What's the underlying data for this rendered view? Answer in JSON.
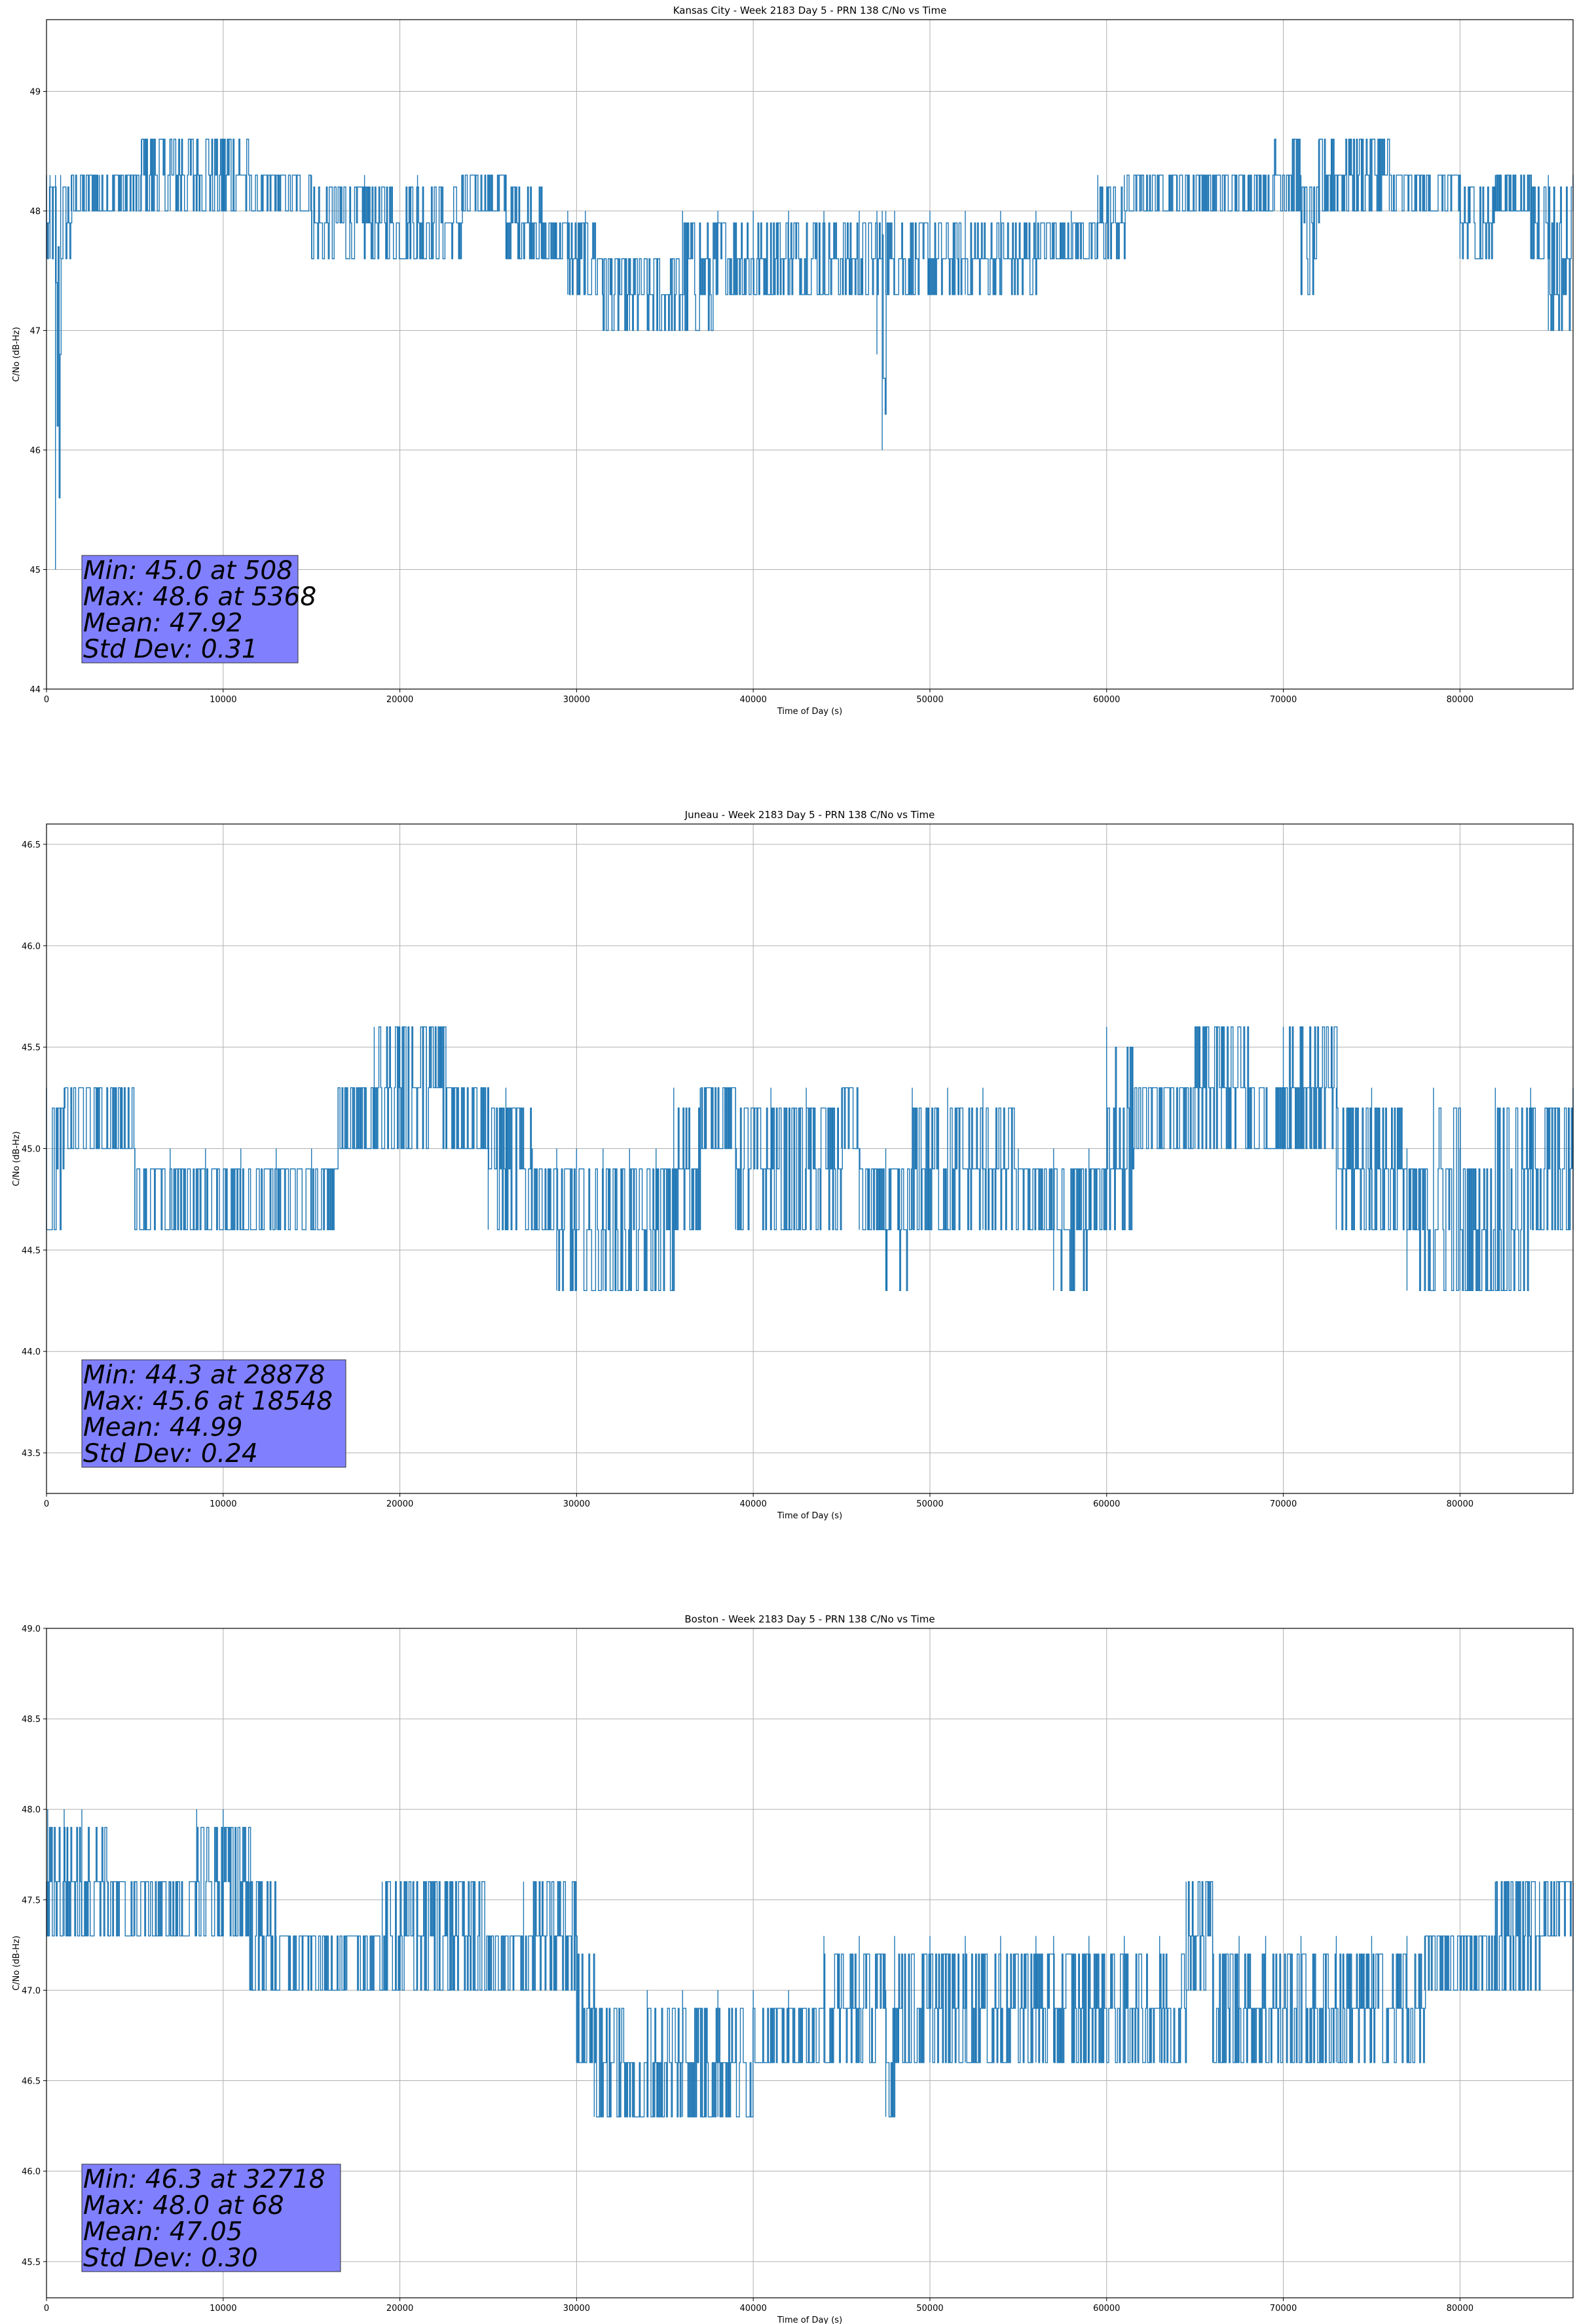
{
  "chart_data": [
    {
      "type": "line",
      "title": "Kansas City - Week 2183 Day 5 - PRN 138 C/No vs Time",
      "xlabel": "Time of Day (s)",
      "ylabel": "C/No (dB-Hz)",
      "xlim": [
        0,
        86400
      ],
      "ylim": [
        44,
        49.6
      ],
      "xticks": [
        0,
        10000,
        20000,
        30000,
        40000,
        50000,
        60000,
        70000,
        80000
      ],
      "yticks": [
        44,
        45,
        46,
        47,
        48,
        49
      ],
      "ytick_labels": [
        "44",
        "45",
        "46",
        "47",
        "48",
        "49"
      ],
      "grid": true,
      "color": "#1f77b4",
      "series": [
        {
          "x": [
            0,
            200,
            508,
            800,
            1400,
            3000,
            5368,
            7000,
            8500,
            10000,
            11500,
            13000,
            15000,
            18000,
            21000,
            23500,
            26000,
            28000,
            29500,
            30500,
            31500,
            32000,
            33000,
            34000,
            36000,
            38000,
            40000,
            42000,
            44000,
            46000,
            47000,
            47300,
            47500,
            48000,
            50000,
            52000,
            54000,
            56000,
            58000,
            59500,
            61000,
            62000,
            64000,
            66000,
            68000,
            69500,
            71000,
            72000,
            74000,
            76000,
            78000,
            80000,
            82000,
            84000,
            85000,
            86400
          ],
          "y": [
            48.3,
            47.6,
            45.0,
            48.3,
            48.0,
            48.3,
            48.6,
            48.3,
            48.6,
            48.3,
            48.0,
            48.3,
            48.0,
            47.6,
            48.3,
            48.0,
            47.6,
            48.0,
            47.6,
            47.3,
            47.6,
            47.0,
            47.6,
            47.0,
            47.6,
            47.3,
            47.6,
            47.3,
            47.6,
            47.3,
            46.8,
            46.0,
            47.6,
            48.0,
            47.6,
            48.0,
            47.6,
            48.0,
            47.6,
            48.0,
            48.3,
            48.0,
            48.3,
            48.0,
            48.3,
            48.6,
            48.0,
            48.3,
            48.6,
            48.3,
            48.0,
            48.3,
            48.0,
            47.6,
            47.0,
            48.3
          ],
          "band_min": [
            47.6,
            47.6,
            45.0,
            47.6,
            48.0,
            48.0,
            48.0,
            48.0,
            48.0,
            48.0,
            48.0,
            48.0,
            47.6,
            47.6,
            47.6,
            48.0,
            47.6,
            47.6,
            47.3,
            47.3,
            47.0,
            47.0,
            47.0,
            47.0,
            47.0,
            47.3,
            47.3,
            47.3,
            47.3,
            47.3,
            47.3,
            46.0,
            47.3,
            47.3,
            47.3,
            47.3,
            47.3,
            47.6,
            47.6,
            47.6,
            48.0,
            48.0,
            48.0,
            48.0,
            48.0,
            48.0,
            47.3,
            48.0,
            48.0,
            48.0,
            48.0,
            47.6,
            48.0,
            47.6,
            47.0,
            48.0
          ],
          "band_max": [
            48.3,
            48.3,
            48.3,
            48.3,
            48.3,
            48.3,
            48.6,
            48.6,
            48.6,
            48.6,
            48.3,
            48.3,
            48.3,
            48.3,
            48.3,
            48.3,
            48.3,
            48.0,
            48.0,
            48.0,
            47.6,
            47.6,
            47.6,
            47.6,
            48.0,
            48.0,
            48.0,
            48.0,
            48.0,
            48.0,
            48.0,
            48.0,
            48.0,
            48.0,
            48.0,
            48.0,
            48.0,
            48.0,
            48.0,
            48.3,
            48.3,
            48.3,
            48.3,
            48.3,
            48.3,
            48.6,
            48.3,
            48.6,
            48.6,
            48.3,
            48.3,
            48.3,
            48.3,
            48.3,
            48.3,
            48.3
          ]
        }
      ],
      "stats": [
        "Min: 45.0 at 508",
        "Max: 48.6 at 5368",
        "Mean: 47.92",
        "Std Dev: 0.31"
      ]
    },
    {
      "type": "line",
      "title": "Juneau - Week 2183 Day 5 - PRN 138 C/No vs Time",
      "xlabel": "Time of Day (s)",
      "ylabel": "C/No (dB-Hz)",
      "xlim": [
        0,
        86400
      ],
      "ylim": [
        43.3,
        46.6
      ],
      "xticks": [
        0,
        10000,
        20000,
        30000,
        40000,
        50000,
        60000,
        70000,
        80000
      ],
      "yticks": [
        43.5,
        44.0,
        44.5,
        45.0,
        45.5,
        46.0,
        46.5
      ],
      "ytick_labels": [
        "43.5",
        "44.0",
        "44.5",
        "45.0",
        "45.5",
        "46.0",
        "46.5"
      ],
      "grid": true,
      "color": "#1f77b4",
      "series": [
        {
          "x": [
            0,
            1000,
            3000,
            5000,
            7000,
            9000,
            11000,
            13000,
            15000,
            16500,
            18548,
            20000,
            21500,
            23000,
            25000,
            26000,
            27500,
            28878,
            30000,
            31500,
            33000,
            34500,
            35500,
            37000,
            39000,
            41000,
            43000,
            45000,
            46000,
            47500,
            49000,
            51000,
            53000,
            55000,
            57000,
            59000,
            60000,
            61500,
            63000,
            65000,
            66500,
            68000,
            70000,
            71500,
            73000,
            75000,
            77000,
            78500,
            80000,
            82000,
            84000,
            86400
          ],
          "y": [
            45.3,
            45.0,
            45.3,
            44.6,
            45.0,
            44.6,
            45.0,
            44.6,
            45.0,
            45.3,
            45.6,
            45.3,
            45.6,
            45.3,
            45.0,
            45.3,
            44.6,
            44.3,
            44.6,
            44.3,
            44.6,
            44.3,
            45.0,
            45.3,
            44.6,
            45.3,
            45.0,
            45.3,
            44.6,
            44.3,
            45.0,
            45.3,
            44.6,
            45.0,
            44.3,
            44.6,
            45.6,
            45.0,
            45.3,
            45.6,
            45.3,
            45.0,
            45.6,
            45.3,
            45.0,
            44.6,
            44.3,
            44.6,
            45.0,
            44.3,
            44.6,
            45.3
          ],
          "band_min": [
            44.6,
            45.0,
            45.0,
            44.6,
            44.6,
            44.6,
            44.6,
            44.6,
            44.6,
            45.0,
            45.0,
            45.0,
            45.0,
            45.0,
            44.6,
            44.6,
            44.6,
            44.3,
            44.3,
            44.3,
            44.3,
            44.3,
            44.6,
            45.0,
            44.6,
            44.6,
            44.6,
            45.0,
            44.6,
            44.3,
            44.6,
            44.6,
            44.6,
            44.6,
            44.3,
            44.6,
            44.6,
            45.0,
            45.0,
            45.0,
            45.0,
            45.0,
            45.0,
            45.0,
            44.6,
            44.6,
            44.3,
            44.3,
            44.3,
            44.3,
            44.6,
            44.6
          ],
          "band_max": [
            45.3,
            45.3,
            45.3,
            45.0,
            45.0,
            45.0,
            45.0,
            45.0,
            45.0,
            45.3,
            45.6,
            45.6,
            45.6,
            45.3,
            45.3,
            45.3,
            45.0,
            45.0,
            45.0,
            45.0,
            45.0,
            45.0,
            45.3,
            45.3,
            45.3,
            45.3,
            45.3,
            45.3,
            45.0,
            45.0,
            45.3,
            45.3,
            45.3,
            45.0,
            45.0,
            45.0,
            45.6,
            45.3,
            45.3,
            45.6,
            45.6,
            45.3,
            45.6,
            45.6,
            45.3,
            45.3,
            45.0,
            45.3,
            45.0,
            45.3,
            45.3,
            45.3
          ]
        }
      ],
      "stats": [
        "Min: 44.3 at 28878",
        "Max: 45.6 at 18548",
        "Mean: 44.99",
        "Std Dev: 0.24"
      ]
    },
    {
      "type": "line",
      "title": "Boston - Week 2183 Day 5 - PRN 138 C/No vs Time",
      "xlabel": "Time of Day (s)",
      "ylabel": "C/No (dB-Hz)",
      "xlim": [
        0,
        86400
      ],
      "ylim": [
        45.3,
        49.0
      ],
      "xticks": [
        0,
        10000,
        20000,
        30000,
        40000,
        50000,
        60000,
        70000,
        80000
      ],
      "yticks": [
        45.5,
        46.0,
        46.5,
        47.0,
        47.5,
        48.0,
        48.5,
        49.0
      ],
      "ytick_labels": [
        "45.5",
        "46.0",
        "46.5",
        "47.0",
        "47.5",
        "48.0",
        "48.5",
        "49.0"
      ],
      "grid": true,
      "color": "#1f77b4",
      "series": [
        {
          "x": [
            0,
            68,
            1000,
            2000,
            3500,
            5000,
            7000,
            8500,
            10000,
            11500,
            13000,
            15000,
            17000,
            19000,
            21000,
            23000,
            25000,
            27000,
            28500,
            30000,
            31000,
            32718,
            34000,
            36000,
            38000,
            40000,
            42000,
            44000,
            46000,
            47500,
            48000,
            50000,
            52000,
            54000,
            56000,
            57000,
            59000,
            61000,
            63000,
            64500,
            66000,
            67500,
            69000,
            71000,
            73000,
            75000,
            77000,
            78000,
            80000,
            82000,
            83000,
            84500,
            86400
          ],
          "y": [
            47.3,
            48.0,
            47.6,
            48.0,
            47.3,
            47.6,
            47.3,
            48.0,
            47.6,
            47.3,
            47.0,
            47.3,
            47.0,
            47.6,
            47.0,
            47.3,
            47.0,
            47.3,
            47.6,
            47.0,
            46.6,
            46.3,
            47.0,
            46.6,
            46.3,
            47.0,
            46.6,
            47.0,
            46.6,
            46.3,
            47.0,
            47.3,
            46.6,
            47.0,
            47.3,
            46.6,
            47.0,
            47.3,
            46.6,
            47.6,
            47.0,
            46.6,
            47.3,
            47.0,
            46.6,
            47.3,
            46.6,
            47.0,
            47.3,
            47.6,
            47.3,
            47.6,
            47.3
          ],
          "band_min": [
            47.3,
            47.3,
            47.3,
            47.3,
            47.3,
            47.3,
            47.3,
            47.3,
            47.3,
            47.0,
            47.0,
            47.0,
            47.0,
            47.0,
            47.0,
            47.0,
            47.0,
            47.0,
            47.0,
            46.6,
            46.3,
            46.3,
            46.3,
            46.3,
            46.3,
            46.6,
            46.6,
            46.6,
            46.6,
            46.3,
            46.6,
            46.6,
            46.6,
            46.6,
            46.6,
            46.6,
            46.6,
            46.6,
            46.6,
            47.0,
            46.6,
            46.6,
            46.6,
            46.6,
            46.6,
            46.6,
            46.6,
            47.0,
            47.0,
            47.0,
            47.0,
            47.3,
            47.0
          ],
          "band_max": [
            47.6,
            48.0,
            48.0,
            48.0,
            47.6,
            47.6,
            47.6,
            48.0,
            48.0,
            47.6,
            47.3,
            47.3,
            47.3,
            47.6,
            47.6,
            47.6,
            47.3,
            47.6,
            47.6,
            47.3,
            47.0,
            46.6,
            47.0,
            47.0,
            47.0,
            47.0,
            47.0,
            47.3,
            47.3,
            47.0,
            47.3,
            47.3,
            47.3,
            47.3,
            47.3,
            47.3,
            47.3,
            47.3,
            47.3,
            47.6,
            47.3,
            47.3,
            47.3,
            47.3,
            47.3,
            47.3,
            47.3,
            47.3,
            47.3,
            47.6,
            47.6,
            47.6,
            47.6
          ]
        }
      ],
      "stats": [
        "Min: 46.3 at 32718",
        "Max: 48.0 at 68",
        "Mean: 47.05",
        "Std Dev: 0.30"
      ]
    }
  ]
}
